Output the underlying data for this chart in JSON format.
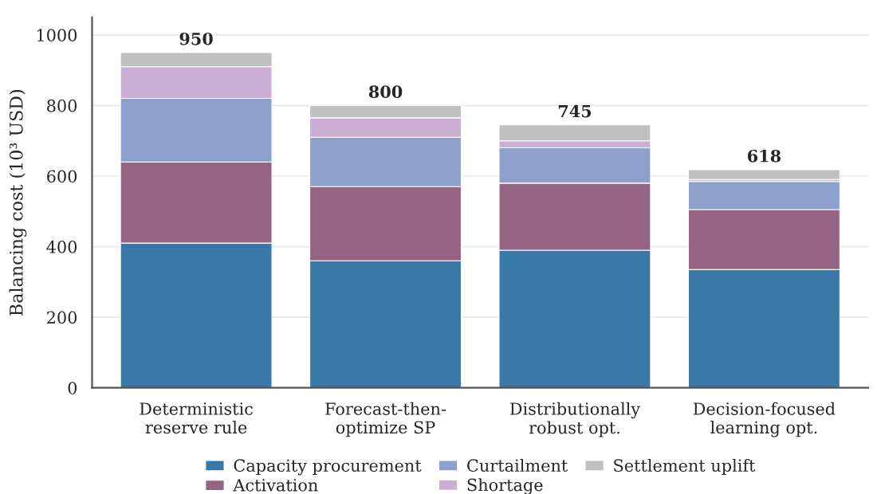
{
  "chart_data": {
    "type": "bar",
    "stacked": true,
    "ylabel": "Balancing cost (10³ USD)",
    "categories": [
      "Deterministic\nreserve rule",
      "Forecast-then-\noptimize SP",
      "Distributionally\nrobust opt.",
      "Decision-focused\nlearning opt."
    ],
    "series": [
      {
        "name": "Capacity procurement",
        "color": "#3a78a8",
        "values": [
          410,
          360,
          390,
          335
        ]
      },
      {
        "name": "Activation",
        "color": "#946482",
        "values": [
          230,
          210,
          190,
          170
        ]
      },
      {
        "name": "Curtailment",
        "color": "#8d9fcb",
        "values": [
          180,
          140,
          100,
          80
        ]
      },
      {
        "name": "Shortage",
        "color": "#c9aed6",
        "values": [
          90,
          55,
          20,
          5
        ]
      },
      {
        "name": "Settlement uplift",
        "color": "#c0c0c0",
        "values": [
          40,
          35,
          45,
          28
        ]
      }
    ],
    "totals": [
      "950",
      "800",
      "745",
      "618"
    ],
    "ylim": [
      0,
      1050
    ],
    "yticks": [
      0,
      200,
      400,
      600,
      800,
      1000
    ],
    "grid": "y",
    "legend": "bottom"
  }
}
